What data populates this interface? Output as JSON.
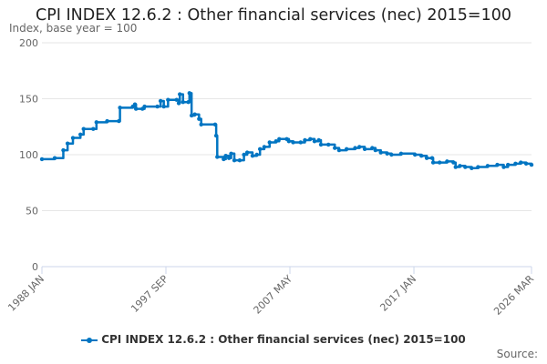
{
  "chart_data": {
    "type": "line",
    "title": "CPI INDEX 12.6.2 : Other financial services (nec) 2015=100",
    "subtitle": "Index, base year = 100",
    "xlabel": "",
    "ylabel": "",
    "ylim": [
      0,
      200
    ],
    "xlim": [
      "1988-01",
      "2026-03"
    ],
    "yticks": [
      0,
      50,
      100,
      150,
      200
    ],
    "xticks": [
      {
        "date": "1988-01",
        "label": "1988 JAN"
      },
      {
        "date": "1997-09",
        "label": "1997 SEP"
      },
      {
        "date": "2007-05",
        "label": "2007 MAY"
      },
      {
        "date": "2017-01",
        "label": "2017 JAN"
      },
      {
        "date": "2026-03",
        "label": "2026 MAR"
      }
    ],
    "grid": true,
    "legend": "bottom",
    "color": "#0075c2",
    "series": [
      {
        "name": "CPI INDEX 12.6.2 : Other financial services (nec) 2015=100",
        "points": [
          [
            "1988-01",
            96
          ],
          [
            "1989-01",
            97
          ],
          [
            "1989-09",
            104
          ],
          [
            "1990-01",
            110
          ],
          [
            "1990-06",
            115
          ],
          [
            "1991-01",
            118
          ],
          [
            "1991-04",
            123
          ],
          [
            "1992-01",
            123
          ],
          [
            "1992-04",
            129
          ],
          [
            "1993-02",
            130
          ],
          [
            "1994-01",
            130
          ],
          [
            "1994-02",
            142
          ],
          [
            "1995-02",
            143
          ],
          [
            "1995-04",
            145
          ],
          [
            "1995-05",
            141
          ],
          [
            "1995-11",
            141
          ],
          [
            "1996-01",
            143
          ],
          [
            "1997-01",
            143
          ],
          [
            "1997-04",
            148
          ],
          [
            "1997-07",
            143
          ],
          [
            "1997-11",
            149
          ],
          [
            "1998-07",
            149
          ],
          [
            "1998-09",
            146
          ],
          [
            "1998-10",
            154
          ],
          [
            "1999-01",
            147
          ],
          [
            "1999-06",
            147
          ],
          [
            "1999-07",
            155
          ],
          [
            "1999-09",
            135
          ],
          [
            "1999-12",
            136
          ],
          [
            "2000-04",
            132
          ],
          [
            "2000-06",
            127
          ],
          [
            "2001-07",
            127
          ],
          [
            "2001-08",
            117
          ],
          [
            "2001-09",
            98
          ],
          [
            "2002-03",
            96
          ],
          [
            "2002-05",
            99
          ],
          [
            "2002-08",
            97
          ],
          [
            "2002-10",
            101
          ],
          [
            "2003-01",
            95
          ],
          [
            "2003-06",
            95
          ],
          [
            "2003-10",
            100
          ],
          [
            "2004-01",
            102
          ],
          [
            "2004-06",
            99
          ],
          [
            "2004-10",
            100
          ],
          [
            "2005-01",
            105
          ],
          [
            "2005-05",
            107
          ],
          [
            "2005-10",
            111
          ],
          [
            "2006-04",
            112
          ],
          [
            "2006-07",
            114
          ],
          [
            "2007-02",
            114
          ],
          [
            "2007-04",
            112
          ],
          [
            "2007-08",
            111
          ],
          [
            "2008-03",
            111
          ],
          [
            "2008-07",
            113
          ],
          [
            "2008-12",
            114
          ],
          [
            "2009-04",
            112
          ],
          [
            "2009-08",
            113
          ],
          [
            "2009-10",
            109
          ],
          [
            "2010-05",
            109
          ],
          [
            "2010-11",
            106
          ],
          [
            "2011-03",
            104
          ],
          [
            "2011-10",
            105
          ],
          [
            "2012-06",
            106
          ],
          [
            "2012-10",
            107
          ],
          [
            "2013-03",
            105
          ],
          [
            "2013-10",
            106
          ],
          [
            "2014-01",
            104
          ],
          [
            "2014-06",
            102
          ],
          [
            "2014-12",
            101
          ],
          [
            "2015-04",
            100
          ],
          [
            "2016-01",
            101
          ],
          [
            "2017-02",
            100
          ],
          [
            "2017-08",
            99
          ],
          [
            "2018-01",
            97
          ],
          [
            "2018-06",
            97
          ],
          [
            "2018-07",
            93
          ],
          [
            "2019-01",
            93
          ],
          [
            "2019-08",
            94
          ],
          [
            "2020-02",
            93
          ],
          [
            "2020-04",
            89
          ],
          [
            "2020-08",
            90
          ],
          [
            "2021-01",
            89
          ],
          [
            "2021-07",
            88
          ],
          [
            "2022-01",
            89
          ],
          [
            "2022-10",
            90
          ],
          [
            "2023-07",
            91
          ],
          [
            "2024-01",
            89
          ],
          [
            "2024-05",
            91
          ],
          [
            "2024-12",
            92
          ],
          [
            "2025-05",
            93
          ],
          [
            "2025-10",
            92
          ],
          [
            "2026-03",
            91
          ]
        ]
      }
    ]
  },
  "source_label": "Source:"
}
